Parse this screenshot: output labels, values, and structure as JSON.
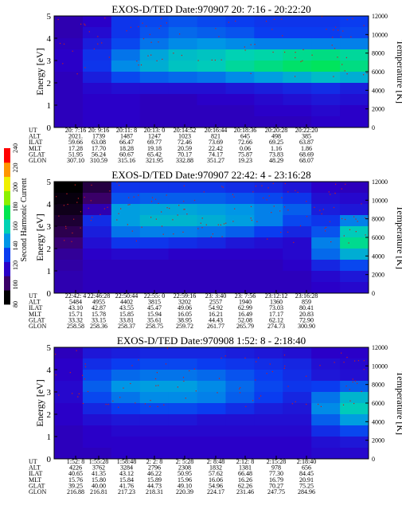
{
  "figure": {
    "colorbar": {
      "label": "Second Harmonic Current",
      "ticks": [
        "80",
        "100",
        "120",
        "140",
        "160",
        "180",
        "200",
        "220",
        "240"
      ],
      "colors": [
        "#000000",
        "#3a0068",
        "#2a00c8",
        "#0a3cf0",
        "#0096e6",
        "#00d2b4",
        "#00e650",
        "#8cf000",
        "#f0f000",
        "#ff9600",
        "#ff0000"
      ]
    },
    "panels": [
      {
        "title": "EXOS-D/TED   Date:970907  20: 7:16 - 20:22:20",
        "ylabel": "Energy [eV]",
        "y2label": "Temperature [K]",
        "yticks": [
          "0",
          "1",
          "2",
          "3",
          "4",
          "5"
        ],
        "y2ticks": [
          "0",
          "2000",
          "4000",
          "6000",
          "8000",
          "10000",
          "12000"
        ],
        "row_labels": [
          "UT",
          "ALT",
          "ILAT",
          "MLT",
          "GLAT",
          "GLON"
        ],
        "columns": [
          [
            "20: 7:16",
            "2021.",
            "59.66",
            "17.28",
            "51.95",
            "307.10"
          ],
          [
            "20: 9:16",
            "1739",
            "63.08",
            "17.70",
            "56.24",
            "310.59"
          ],
          [
            "20:11: 8",
            "1487",
            "66.47",
            "18.28",
            "60.67",
            "315.16"
          ],
          [
            "20:13: 0",
            "1247",
            "69.77",
            "19.18",
            "65.42",
            "321.95"
          ],
          [
            "20:14:52",
            "1023",
            "72.46",
            "20.59",
            "70.17",
            "332.88"
          ],
          [
            "20:16:44",
            "821",
            "73.69",
            "22.42",
            "74.17",
            "351.27"
          ],
          [
            "20:18:36",
            "645",
            "72.66",
            "0.06",
            "75.87",
            "19.23"
          ],
          [
            "20:20:28",
            "498",
            "69.25",
            "1.16",
            "73.83",
            "48.29"
          ],
          [
            "20:22:20",
            "385",
            "63.87",
            "1.86",
            "68.69",
            "68.07"
          ]
        ]
      },
      {
        "title": "EXOS-D/TED   Date:970907  22:42: 4 - 23:16:28",
        "ylabel": "Energy [eV]",
        "y2label": "Temperature [K]",
        "yticks": [
          "0",
          "1",
          "2",
          "3",
          "4",
          "5"
        ],
        "y2ticks": [
          "0",
          "2000",
          "4000",
          "6000",
          "8000",
          "10000",
          "12000"
        ],
        "row_labels": [
          "UT",
          "ALT",
          "ILAT",
          "MLT",
          "GLAT",
          "GLON"
        ],
        "columns": [
          [
            "22:42: 4",
            "5484",
            "43.10",
            "15.71",
            "33.32",
            "258.58"
          ],
          [
            "22:46:28",
            "4955",
            "42.87",
            "15.78",
            "33.15",
            "258.36"
          ],
          [
            "22:50:44",
            "4402",
            "43.55",
            "15.85",
            "33.81",
            "258.37"
          ],
          [
            "22:55: 0",
            "3815",
            "45.47",
            "15.94",
            "35.61",
            "258.75"
          ],
          [
            "22:59:16",
            "3202",
            "49.06",
            "16.05",
            "38.95",
            "259.72"
          ],
          [
            "23: 3:40",
            "2557",
            "54.92",
            "16.21",
            "44.43",
            "261.77"
          ],
          [
            "23: 7:56",
            "1940",
            "62.99",
            "16.49",
            "52.08",
            "265.79"
          ],
          [
            "23:12:12",
            "1360",
            "73.03",
            "17.17",
            "62.12",
            "274.73"
          ],
          [
            "23:16:28",
            "859",
            "80.41",
            "20.83",
            "72.90",
            "300.90"
          ]
        ]
      },
      {
        "title": "EXOS-D/TED   Date:970908   1:52: 8 - 2:18:40",
        "ylabel": "Energy [eV]",
        "y2label": "Temperature [K]",
        "yticks": [
          "0",
          "1",
          "2",
          "3",
          "4",
          "5"
        ],
        "y2ticks": [
          "0",
          "2000",
          "4000",
          "6000",
          "8000",
          "10000",
          "12000"
        ],
        "row_labels": [
          "UT",
          "ALT",
          "ILAT",
          "MLT",
          "GLAT",
          "GLON"
        ],
        "columns": [
          [
            "1:52: 8",
            "4226",
            "40.65",
            "15.76",
            "39.25",
            "216.88"
          ],
          [
            "1:55:28",
            "3762",
            "41.35",
            "15.80",
            "40.00",
            "216.81"
          ],
          [
            "1:58:48",
            "3284",
            "43.12",
            "15.84",
            "41.76",
            "217.23"
          ],
          [
            "2: 2: 8",
            "2796",
            "46.22",
            "15.89",
            "44.73",
            "218.31"
          ],
          [
            "2: 5:28",
            "2308",
            "50.95",
            "15.96",
            "49.10",
            "220.39"
          ],
          [
            "2: 8:48",
            "1832",
            "57.62",
            "16.06",
            "54.96",
            "224.17"
          ],
          [
            "2:12: 8",
            "1381",
            "66.48",
            "16.26",
            "62.26",
            "231.46"
          ],
          [
            "2:15:28",
            "978",
            "77.30",
            "16.79",
            "70.27",
            "247.75"
          ],
          [
            "2:18:40",
            "656",
            "84.45",
            "20.91",
            "75.25",
            "284.96"
          ]
        ]
      }
    ]
  },
  "chart_data": [
    {
      "type": "heatmap",
      "title": "EXOS-D/TED   Date:970907  20: 7:16 - 20:22:20",
      "xlabel": "UT",
      "ylabel": "Energy [eV]",
      "y2label": "Temperature [K]",
      "ylim": [
        0,
        5
      ],
      "y2lim": [
        0,
        12000
      ],
      "x_ticks": [
        "20: 7:16",
        "20: 9:16",
        "20:11: 8",
        "20:13: 0",
        "20:14:52",
        "20:16:44",
        "20:18:36",
        "20:20:28",
        "20:22:20"
      ],
      "color_scale": {
        "label": "Second Harmonic Current",
        "range": [
          80,
          240
        ]
      },
      "values": [
        [
          108,
          112,
          126,
          130,
          132,
          130,
          128,
          126,
          126,
          126,
          128
        ],
        [
          108,
          115,
          126,
          132,
          136,
          134,
          132,
          128,
          128,
          128,
          130
        ],
        [
          110,
          120,
          130,
          138,
          142,
          144,
          142,
          140,
          140,
          140,
          140
        ],
        [
          112,
          125,
          138,
          148,
          154,
          156,
          160,
          162,
          166,
          168,
          164
        ],
        [
          112,
          126,
          142,
          150,
          156,
          158,
          164,
          168,
          172,
          174,
          168
        ],
        [
          110,
          120,
          130,
          134,
          136,
          138,
          142,
          146,
          150,
          154,
          150
        ],
        [
          110,
          114,
          116,
          116,
          116,
          116,
          118,
          120,
          122,
          124,
          120
        ],
        [
          110,
          112,
          112,
          110,
          110,
          112,
          112,
          114,
          116,
          118,
          116
        ],
        [
          110,
          112,
          112,
          110,
          110,
          110,
          110,
          112,
          112,
          114,
          112
        ],
        [
          110,
          112,
          112,
          110,
          110,
          110,
          110,
          110,
          110,
          112,
          112
        ]
      ]
    },
    {
      "type": "heatmap",
      "title": "EXOS-D/TED   Date:970907  22:42: 4 - 23:16:28",
      "xlabel": "UT",
      "ylabel": "Energy [eV]",
      "y2label": "Temperature [K]",
      "ylim": [
        0,
        5
      ],
      "y2lim": [
        0,
        12000
      ],
      "x_ticks": [
        "22:42: 4",
        "22:46:28",
        "22:50:44",
        "22:55: 0",
        "22:59:16",
        "23: 3:40",
        "23: 7:56",
        "23:12:12",
        "23:16:28"
      ],
      "color_scale": {
        "label": "Second Harmonic Current",
        "range": [
          80,
          240
        ]
      },
      "values": [
        [
          80,
          90,
          126,
          126,
          126,
          126,
          124,
          122,
          118,
          112,
          110
        ],
        [
          82,
          96,
          132,
          134,
          134,
          134,
          132,
          130,
          126,
          116,
          114
        ],
        [
          84,
          108,
          146,
          148,
          148,
          146,
          144,
          140,
          134,
          120,
          118
        ],
        [
          88,
          124,
          146,
          152,
          152,
          150,
          146,
          140,
          130,
          126,
          140
        ],
        [
          92,
          120,
          138,
          140,
          140,
          138,
          134,
          128,
          122,
          132,
          158
        ],
        [
          98,
          116,
          126,
          126,
          124,
          122,
          118,
          116,
          114,
          140,
          166
        ],
        [
          104,
          112,
          114,
          114,
          112,
          112,
          112,
          112,
          114,
          136,
          150
        ],
        [
          106,
          110,
          110,
          110,
          110,
          110,
          110,
          110,
          112,
          122,
          130
        ],
        [
          108,
          110,
          110,
          110,
          110,
          110,
          110,
          110,
          110,
          114,
          118
        ],
        [
          108,
          110,
          110,
          110,
          110,
          110,
          110,
          110,
          110,
          112,
          114
        ]
      ]
    },
    {
      "type": "heatmap",
      "title": "EXOS-D/TED   Date:970908   1:52: 8 - 2:18:40",
      "xlabel": "UT",
      "ylabel": "Energy [eV]",
      "y2label": "Temperature [K]",
      "ylim": [
        0,
        5
      ],
      "y2lim": [
        0,
        12000
      ],
      "x_ticks": [
        "1:52: 8",
        "1:55:28",
        "1:58:48",
        "2: 2: 8",
        "2: 5:28",
        "2: 8:48",
        "2:12: 8",
        "2:15:28",
        "2:18:40"
      ],
      "color_scale": {
        "label": "Second Harmonic Current",
        "range": [
          80,
          240
        ]
      },
      "values": [
        [
          110,
          118,
          120,
          122,
          122,
          122,
          120,
          118,
          116,
          112,
          112
        ],
        [
          112,
          124,
          128,
          130,
          130,
          128,
          126,
          124,
          122,
          116,
          114
        ],
        [
          112,
          130,
          136,
          138,
          138,
          136,
          132,
          128,
          124,
          118,
          116
        ],
        [
          114,
          134,
          144,
          146,
          146,
          142,
          136,
          130,
          126,
          128,
          134
        ],
        [
          114,
          130,
          138,
          142,
          142,
          140,
          134,
          128,
          122,
          138,
          152
        ],
        [
          112,
          122,
          128,
          130,
          130,
          128,
          124,
          120,
          118,
          142,
          158
        ],
        [
          112,
          116,
          118,
          118,
          118,
          116,
          116,
          116,
          116,
          134,
          146
        ],
        [
          110,
          112,
          114,
          114,
          114,
          114,
          114,
          114,
          114,
          124,
          130
        ],
        [
          110,
          112,
          112,
          112,
          112,
          112,
          112,
          112,
          112,
          116,
          118
        ],
        [
          110,
          110,
          112,
          112,
          112,
          112,
          112,
          112,
          112,
          114,
          114
        ]
      ]
    }
  ]
}
